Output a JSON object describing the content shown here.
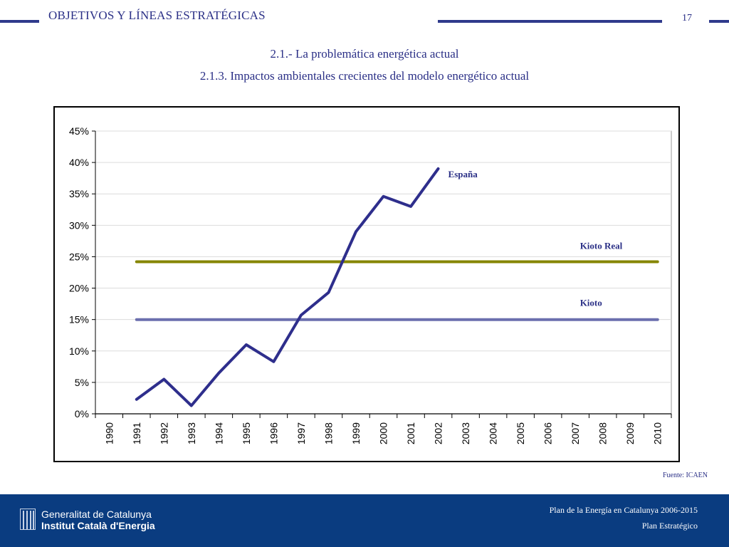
{
  "header": {
    "title": "OBJETIVOS Y LÍNEAS ESTRATÉGICAS",
    "page_number": "17"
  },
  "subtitle": {
    "line1": "2.1.- La problemática energética actual",
    "line2": "2.1.3. Impactos ambientales crecientes del modelo energético actual"
  },
  "source": "Fuente: ICAEN",
  "footer": {
    "org_line1": "Generalitat de Catalunya",
    "org_line2": "Institut Català d'Energia",
    "plan_line1": "Plan de la Energía en Catalunya 2006-2015",
    "plan_line2": "Plan Estratégico"
  },
  "colors": {
    "brand_blue": "#2a2f86",
    "footer_blue": "#0a3c80",
    "espana": "#2e2e8c",
    "kioto_real": "#868600",
    "kioto": "#6b6fae"
  },
  "chart_data": {
    "type": "line",
    "categories": [
      "1990",
      "1991",
      "1992",
      "1993",
      "1994",
      "1995",
      "1996",
      "1997",
      "1998",
      "1999",
      "2000",
      "2001",
      "2002",
      "2003",
      "2004",
      "2005",
      "2006",
      "2007",
      "2008",
      "2009",
      "2010"
    ],
    "y_ticks": [
      "0%",
      "5%",
      "10%",
      "15%",
      "20%",
      "25%",
      "30%",
      "35%",
      "40%",
      "45%"
    ],
    "ylim": [
      0,
      45
    ],
    "grid": true,
    "series": [
      {
        "name": "España",
        "color": "#2e2e8c",
        "x": [
          "1991",
          "1992",
          "1993",
          "1994",
          "1995",
          "1996",
          "1997",
          "1998",
          "1999",
          "2000",
          "2001",
          "2002"
        ],
        "values": [
          2.3,
          5.5,
          1.3,
          6.5,
          11.0,
          8.3,
          15.7,
          19.3,
          29.0,
          34.6,
          33.0,
          39.0
        ]
      },
      {
        "name": "Kioto Real",
        "color": "#868600",
        "x": [
          "1991",
          "2010"
        ],
        "values": [
          24.2,
          24.2
        ]
      },
      {
        "name": "Kioto",
        "color": "#6b6fae",
        "x": [
          "1991",
          "2010"
        ],
        "values": [
          15.0,
          15.0
        ]
      }
    ]
  }
}
